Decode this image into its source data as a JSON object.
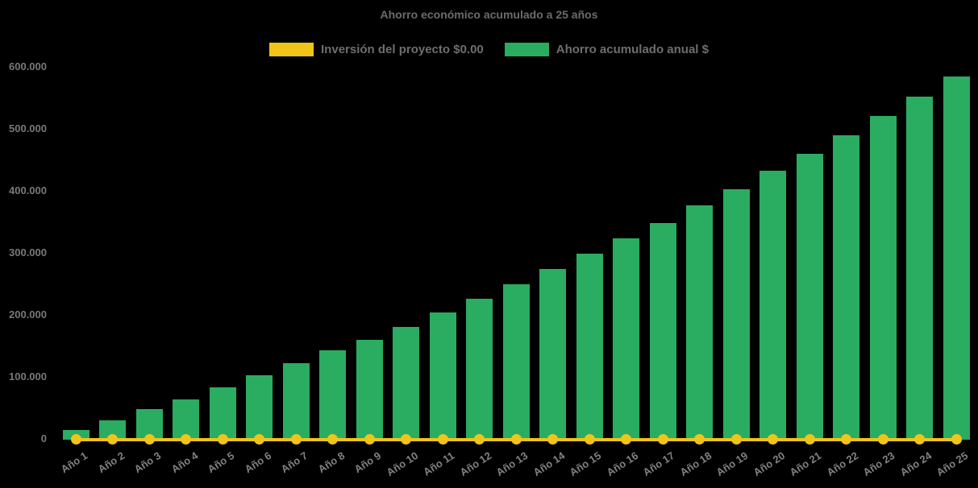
{
  "chart": {
    "background_color": "#000000",
    "title_color": "#6b6b6b",
    "axis_label_color": "#7d7d7d"
  },
  "chart_data": {
    "type": "bar",
    "title": "Ahorro económico acumulado a 25 años",
    "xlabel": "",
    "ylabel": "",
    "categories": [
      "Año 1",
      "Año 2",
      "Año 3",
      "Año 4",
      "Año 5",
      "Año 6",
      "Año 7",
      "Año 8",
      "Año 9",
      "Año 10",
      "Año 11",
      "Año 12",
      "Año 13",
      "Año 14",
      "Año 15",
      "Año 16",
      "Año 17",
      "Año 18",
      "Año 19",
      "Año 20",
      "Año 21",
      "Año 22",
      "Año 23",
      "Año 24",
      "Año 25"
    ],
    "series": [
      {
        "name": "Inversión del proyecto $0.00",
        "type": "line",
        "color": "#f0c419",
        "values": [
          0,
          0,
          0,
          0,
          0,
          0,
          0,
          0,
          0,
          0,
          0,
          0,
          0,
          0,
          0,
          0,
          0,
          0,
          0,
          0,
          0,
          0,
          0,
          0,
          0
        ]
      },
      {
        "name": "Ahorro acumulado anual $",
        "type": "bar",
        "color": "#2aac61",
        "values": [
          14500,
          29500,
          48000,
          64000,
          83500,
          103000,
          121500,
          143000,
          160000,
          181000,
          204000,
          226000,
          250000,
          274000,
          299000,
          324000,
          348000,
          376000,
          403000,
          432000,
          460000,
          490000,
          521000,
          552000,
          585000
        ]
      }
    ],
    "ylim": [
      0,
      600000
    ],
    "yticks": [
      0,
      100000,
      200000,
      300000,
      400000,
      500000,
      600000
    ],
    "ytick_labels": [
      "0",
      "100.000",
      "200.000",
      "300.000",
      "400.000",
      "500.000",
      "600.000"
    ],
    "grid": false,
    "legend_position": "top-center",
    "x_labels_rotated_deg": -33
  }
}
